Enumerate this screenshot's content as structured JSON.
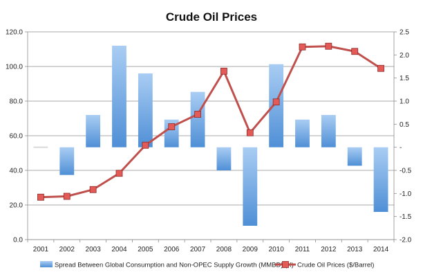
{
  "chart_data": {
    "type": "bar",
    "title": "Crude Oil Prices",
    "categories": [
      "2001",
      "2002",
      "2003",
      "2004",
      "2005",
      "2006",
      "2007",
      "2008",
      "2009",
      "2010",
      "2011",
      "2012",
      "2013",
      "2014"
    ],
    "y_left": {
      "ticks": [
        "0.0",
        "20.0",
        "40.0",
        "60.0",
        "80.0",
        "100.0",
        "120.0"
      ],
      "ylim": [
        0,
        120
      ]
    },
    "y_right": {
      "ticks": [
        "-2.0",
        "-1.5",
        "-1.0",
        "-0.5",
        "-",
        "0.5",
        "1.0",
        "1.5",
        "2.0",
        "2.5"
      ],
      "ylim": [
        -2.0,
        2.5
      ]
    },
    "series": [
      {
        "name": "Spread Between Global Consumption and Non-OPEC Supply Growth (MMBD) (X)",
        "type": "bar",
        "axis": "right",
        "color": "#4f8fd6",
        "values": [
          0.0,
          -0.6,
          0.7,
          2.2,
          1.6,
          0.6,
          1.2,
          -0.5,
          -1.7,
          1.8,
          0.6,
          0.7,
          -0.4,
          -1.4
        ]
      },
      {
        "name": "Crude Oil Prices ($/Barrel)",
        "type": "line",
        "axis": "left",
        "color": "#c0504d",
        "marker_color": "#e35a56",
        "values": [
          24.5,
          25.0,
          28.9,
          38.3,
          54.5,
          65.2,
          72.4,
          97.3,
          61.7,
          79.5,
          111.3,
          111.7,
          108.7,
          98.9
        ]
      }
    ],
    "legend_position": "bottom",
    "grid": true
  }
}
